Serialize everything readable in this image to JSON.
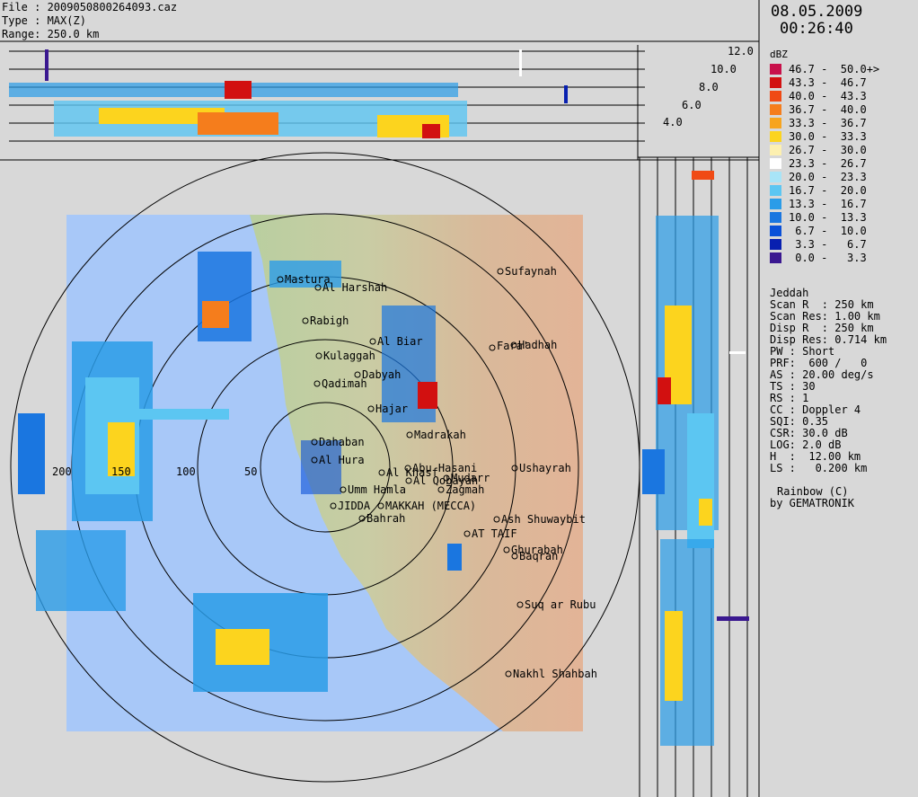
{
  "header": {
    "file": "File : 2009050800264093.caz",
    "type": "Type : MAX(Z)",
    "range": "Range: 250.0 km"
  },
  "datetime": {
    "date": "08.05.2009",
    "time": "00:26:40"
  },
  "legend": {
    "unit": "dBZ",
    "entries": [
      {
        "label": "46.7 -  50.0+>",
        "color": "#c8104a"
      },
      {
        "label": "43.3 -  46.7",
        "color": "#d21010"
      },
      {
        "label": "40.0 -  43.3",
        "color": "#f04a14"
      },
      {
        "label": "36.7 -  40.0",
        "color": "#f57d1c"
      },
      {
        "label": "33.3 -  36.7",
        "color": "#f7a41e"
      },
      {
        "label": "30.0 -  33.3",
        "color": "#fcd41e"
      },
      {
        "label": "26.7 -  30.0",
        "color": "#fdf0b0"
      },
      {
        "label": "23.3 -  26.7",
        "color": "#ffffff"
      },
      {
        "label": "20.0 -  23.3",
        "color": "#a8e4f7"
      },
      {
        "label": "16.7 -  20.0",
        "color": "#5cc6f2"
      },
      {
        "label": "13.3 -  16.7",
        "color": "#2a9ce8"
      },
      {
        "label": "10.0 -  13.3",
        "color": "#1a76e0"
      },
      {
        "label": " 6.7 -  10.0",
        "color": "#0a50d8"
      },
      {
        "label": " 3.3 -   6.7",
        "color": "#0820b0"
      },
      {
        "label": " 0.0 -   3.3",
        "color": "#3a1890"
      }
    ]
  },
  "params": [
    "Jeddah",
    "Scan R  : 250 km",
    "Scan Res: 1.00 km",
    "Disp R  : 250 km",
    "Disp Res: 0.714 km",
    "PW : Short",
    "PRF:  600 /   0",
    "AS : 20.00 deg/s",
    "TS : 30",
    "RS : 1",
    "CC : Doppler 4",
    "SQI: 0.35",
    "CSR: 30.0 dB",
    "LOG: 2.0 dB",
    "H  :  12.00 km",
    "LS :   0.200 km"
  ],
  "credit": [
    "Rainbow (C)",
    "by GEMATRONIK"
  ],
  "height_axis": [
    "12.0",
    "10.0",
    "8.0",
    "6.0",
    "4.0"
  ],
  "range_labels": [
    "200",
    "150",
    "100",
    "50"
  ],
  "cities": [
    {
      "name": "Mastura"
    },
    {
      "name": "Al Harshah"
    },
    {
      "name": "Sufaynah"
    },
    {
      "name": "Rabigh"
    },
    {
      "name": "Al Biar"
    },
    {
      "name": "Fara'"
    },
    {
      "name": "Hadhah"
    },
    {
      "name": "Kulaggah"
    },
    {
      "name": "Dabyah"
    },
    {
      "name": "Qadimah"
    },
    {
      "name": "Hajar"
    },
    {
      "name": "Madrakah"
    },
    {
      "name": "Dahaban"
    },
    {
      "name": "Al Hura"
    },
    {
      "name": "Al Khasf"
    },
    {
      "name": "Abu Hasani"
    },
    {
      "name": "Mudarr"
    },
    {
      "name": "Ushayrah"
    },
    {
      "name": "Al Qobayah"
    },
    {
      "name": "Umm Hamla"
    },
    {
      "name": "Zagmah"
    },
    {
      "name": "JIDDA"
    },
    {
      "name": "MAKKAH (MECCA)"
    },
    {
      "name": "Bahrah"
    },
    {
      "name": "Ash Shuwaybit"
    },
    {
      "name": "AT TAIF"
    },
    {
      "name": "Ghurabah"
    },
    {
      "name": "Baqran"
    },
    {
      "name": "Suq ar Rubu"
    },
    {
      "name": "Nakhl Shahbah"
    }
  ]
}
